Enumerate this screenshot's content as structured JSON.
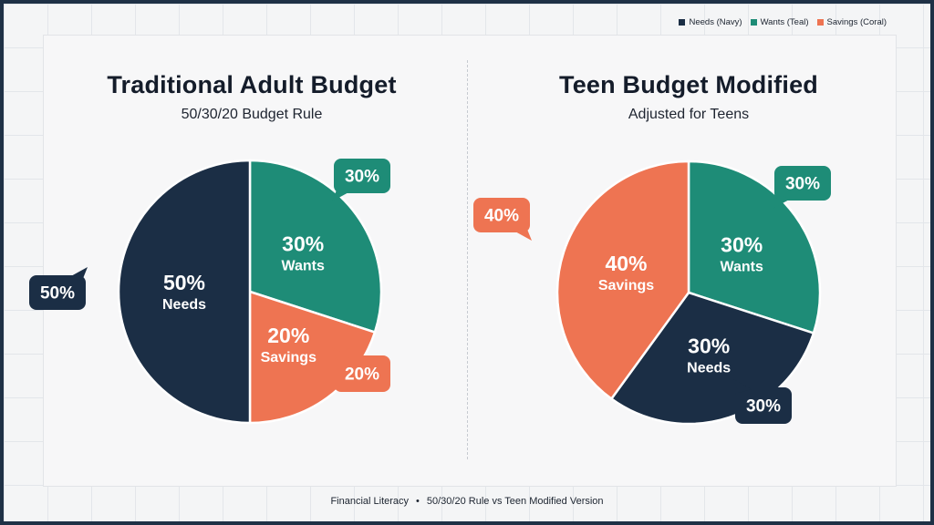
{
  "legend": [
    {
      "label": "Needs (Navy)",
      "color": "#1b2e45"
    },
    {
      "label": "Wants (Teal)",
      "color": "#1e8c77"
    },
    {
      "label": "Savings (Coral)",
      "color": "#ee7452"
    }
  ],
  "colors": {
    "navy": "#1b2e45",
    "teal": "#1e8c77",
    "coral": "#ee7452"
  },
  "chart_data": [
    {
      "type": "pie",
      "title": "Traditional Adult Budget",
      "subtitle": "50/30/20 Budget Rule",
      "slices": [
        {
          "label": "Wants",
          "value": 30,
          "percent_text": "30%",
          "callout": "30%",
          "color": "#1e8c77"
        },
        {
          "label": "Savings",
          "value": 20,
          "percent_text": "20%",
          "callout": "20%",
          "color": "#ee7452"
        },
        {
          "label": "Needs",
          "value": 50,
          "percent_text": "50%",
          "callout": "50%",
          "color": "#1b2e45"
        }
      ]
    },
    {
      "type": "pie",
      "title": "Teen Budget Modified",
      "subtitle": "Adjusted for Teens",
      "slices": [
        {
          "label": "Wants",
          "value": 30,
          "percent_text": "30%",
          "callout": "30%",
          "color": "#1e8c77"
        },
        {
          "label": "Needs",
          "value": 30,
          "percent_text": "30%",
          "callout": "30%",
          "color": "#1b2e45"
        },
        {
          "label": "Savings",
          "value": 40,
          "percent_text": "40%",
          "callout": "40%",
          "color": "#ee7452"
        }
      ]
    }
  ],
  "footer": {
    "left": "Financial Literacy",
    "separator": "•",
    "right": "50/30/20 Rule vs Teen Modified Version"
  }
}
